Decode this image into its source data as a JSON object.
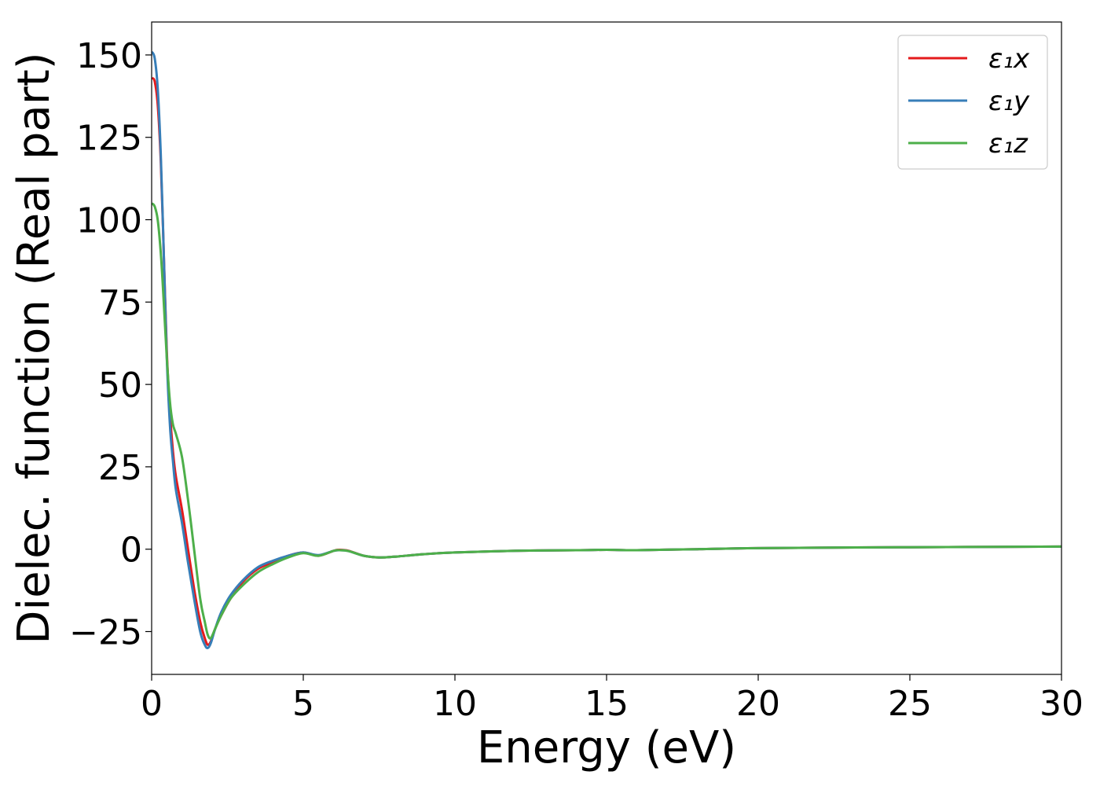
{
  "chart_data": {
    "type": "line",
    "title": "",
    "xlabel": "Energy (eV)",
    "ylabel": "Dielec. function (Real part)",
    "xlim": [
      0,
      30
    ],
    "ylim": [
      -38,
      160
    ],
    "xticks": [
      0,
      5,
      10,
      15,
      20,
      25,
      30
    ],
    "yticks": [
      -25,
      0,
      25,
      50,
      75,
      100,
      125,
      150
    ],
    "grid": false,
    "legend": "top-right",
    "series": [
      {
        "name": "ε₁x",
        "color": "#e41a1c",
        "x": [
          0,
          0.1,
          0.2,
          0.3,
          0.4,
          0.5,
          0.6,
          0.7,
          0.8,
          1.0,
          1.2,
          1.4,
          1.6,
          1.75,
          1.85,
          1.95,
          2.1,
          2.3,
          2.6,
          3.0,
          3.5,
          4.0,
          4.5,
          5.0,
          5.5,
          6.0,
          6.2,
          6.5,
          7.0,
          7.5,
          8.0,
          9.0,
          10,
          12,
          14,
          15,
          16,
          18,
          20,
          25,
          30
        ],
        "y": [
          143,
          142,
          135,
          118,
          90,
          60,
          42,
          30,
          22,
          12,
          0,
          -12,
          -22,
          -27,
          -29,
          -28,
          -24,
          -20,
          -15,
          -10,
          -6,
          -4,
          -2,
          -1,
          -2,
          -0.5,
          -0.2,
          -0.5,
          -2,
          -2.5,
          -2.3,
          -1.5,
          -1,
          -0.5,
          -0.3,
          -0.2,
          -0.3,
          0,
          0.3,
          0.6,
          0.8
        ]
      },
      {
        "name": "ε₁y",
        "color": "#377eb8",
        "x": [
          0,
          0.1,
          0.2,
          0.3,
          0.4,
          0.5,
          0.6,
          0.7,
          0.8,
          1.0,
          1.2,
          1.4,
          1.6,
          1.75,
          1.85,
          1.95,
          2.1,
          2.3,
          2.6,
          3.0,
          3.5,
          4.0,
          4.5,
          5.0,
          5.5,
          6.0,
          6.2,
          6.5,
          7.0,
          7.5,
          8.0,
          9.0,
          10,
          12,
          14,
          15,
          16,
          18,
          20,
          25,
          30
        ],
        "y": [
          151,
          149,
          140,
          120,
          90,
          58,
          38,
          27,
          18,
          8,
          -4,
          -15,
          -25,
          -29,
          -30,
          -28.5,
          -24,
          -19,
          -14,
          -9.5,
          -5.5,
          -3.5,
          -2,
          -1,
          -1.8,
          -0.5,
          -0.3,
          -0.6,
          -2,
          -2.5,
          -2.3,
          -1.5,
          -1,
          -0.5,
          -0.3,
          -0.2,
          -0.3,
          0,
          0.3,
          0.6,
          0.8
        ]
      },
      {
        "name": "ε₁z",
        "color": "#4daf4a",
        "x": [
          0,
          0.1,
          0.2,
          0.3,
          0.4,
          0.5,
          0.6,
          0.7,
          0.8,
          1.0,
          1.2,
          1.4,
          1.6,
          1.75,
          1.85,
          1.95,
          2.1,
          2.3,
          2.6,
          3.0,
          3.5,
          4.0,
          4.5,
          5.0,
          5.5,
          6.0,
          6.2,
          6.5,
          7.0,
          7.5,
          8.0,
          9.0,
          10,
          12,
          14,
          15,
          16,
          18,
          20,
          25,
          30
        ],
        "y": [
          105,
          104,
          100,
          90,
          75,
          58,
          45,
          38,
          35,
          28,
          15,
          0,
          -15,
          -22,
          -26,
          -27,
          -24,
          -20,
          -15,
          -11,
          -7,
          -4.5,
          -2.5,
          -1.2,
          -2,
          -0.5,
          -0.3,
          -0.6,
          -2,
          -2.5,
          -2.3,
          -1.5,
          -1,
          -0.5,
          -0.3,
          -0.2,
          -0.3,
          0,
          0.3,
          0.6,
          0.8
        ]
      }
    ]
  }
}
